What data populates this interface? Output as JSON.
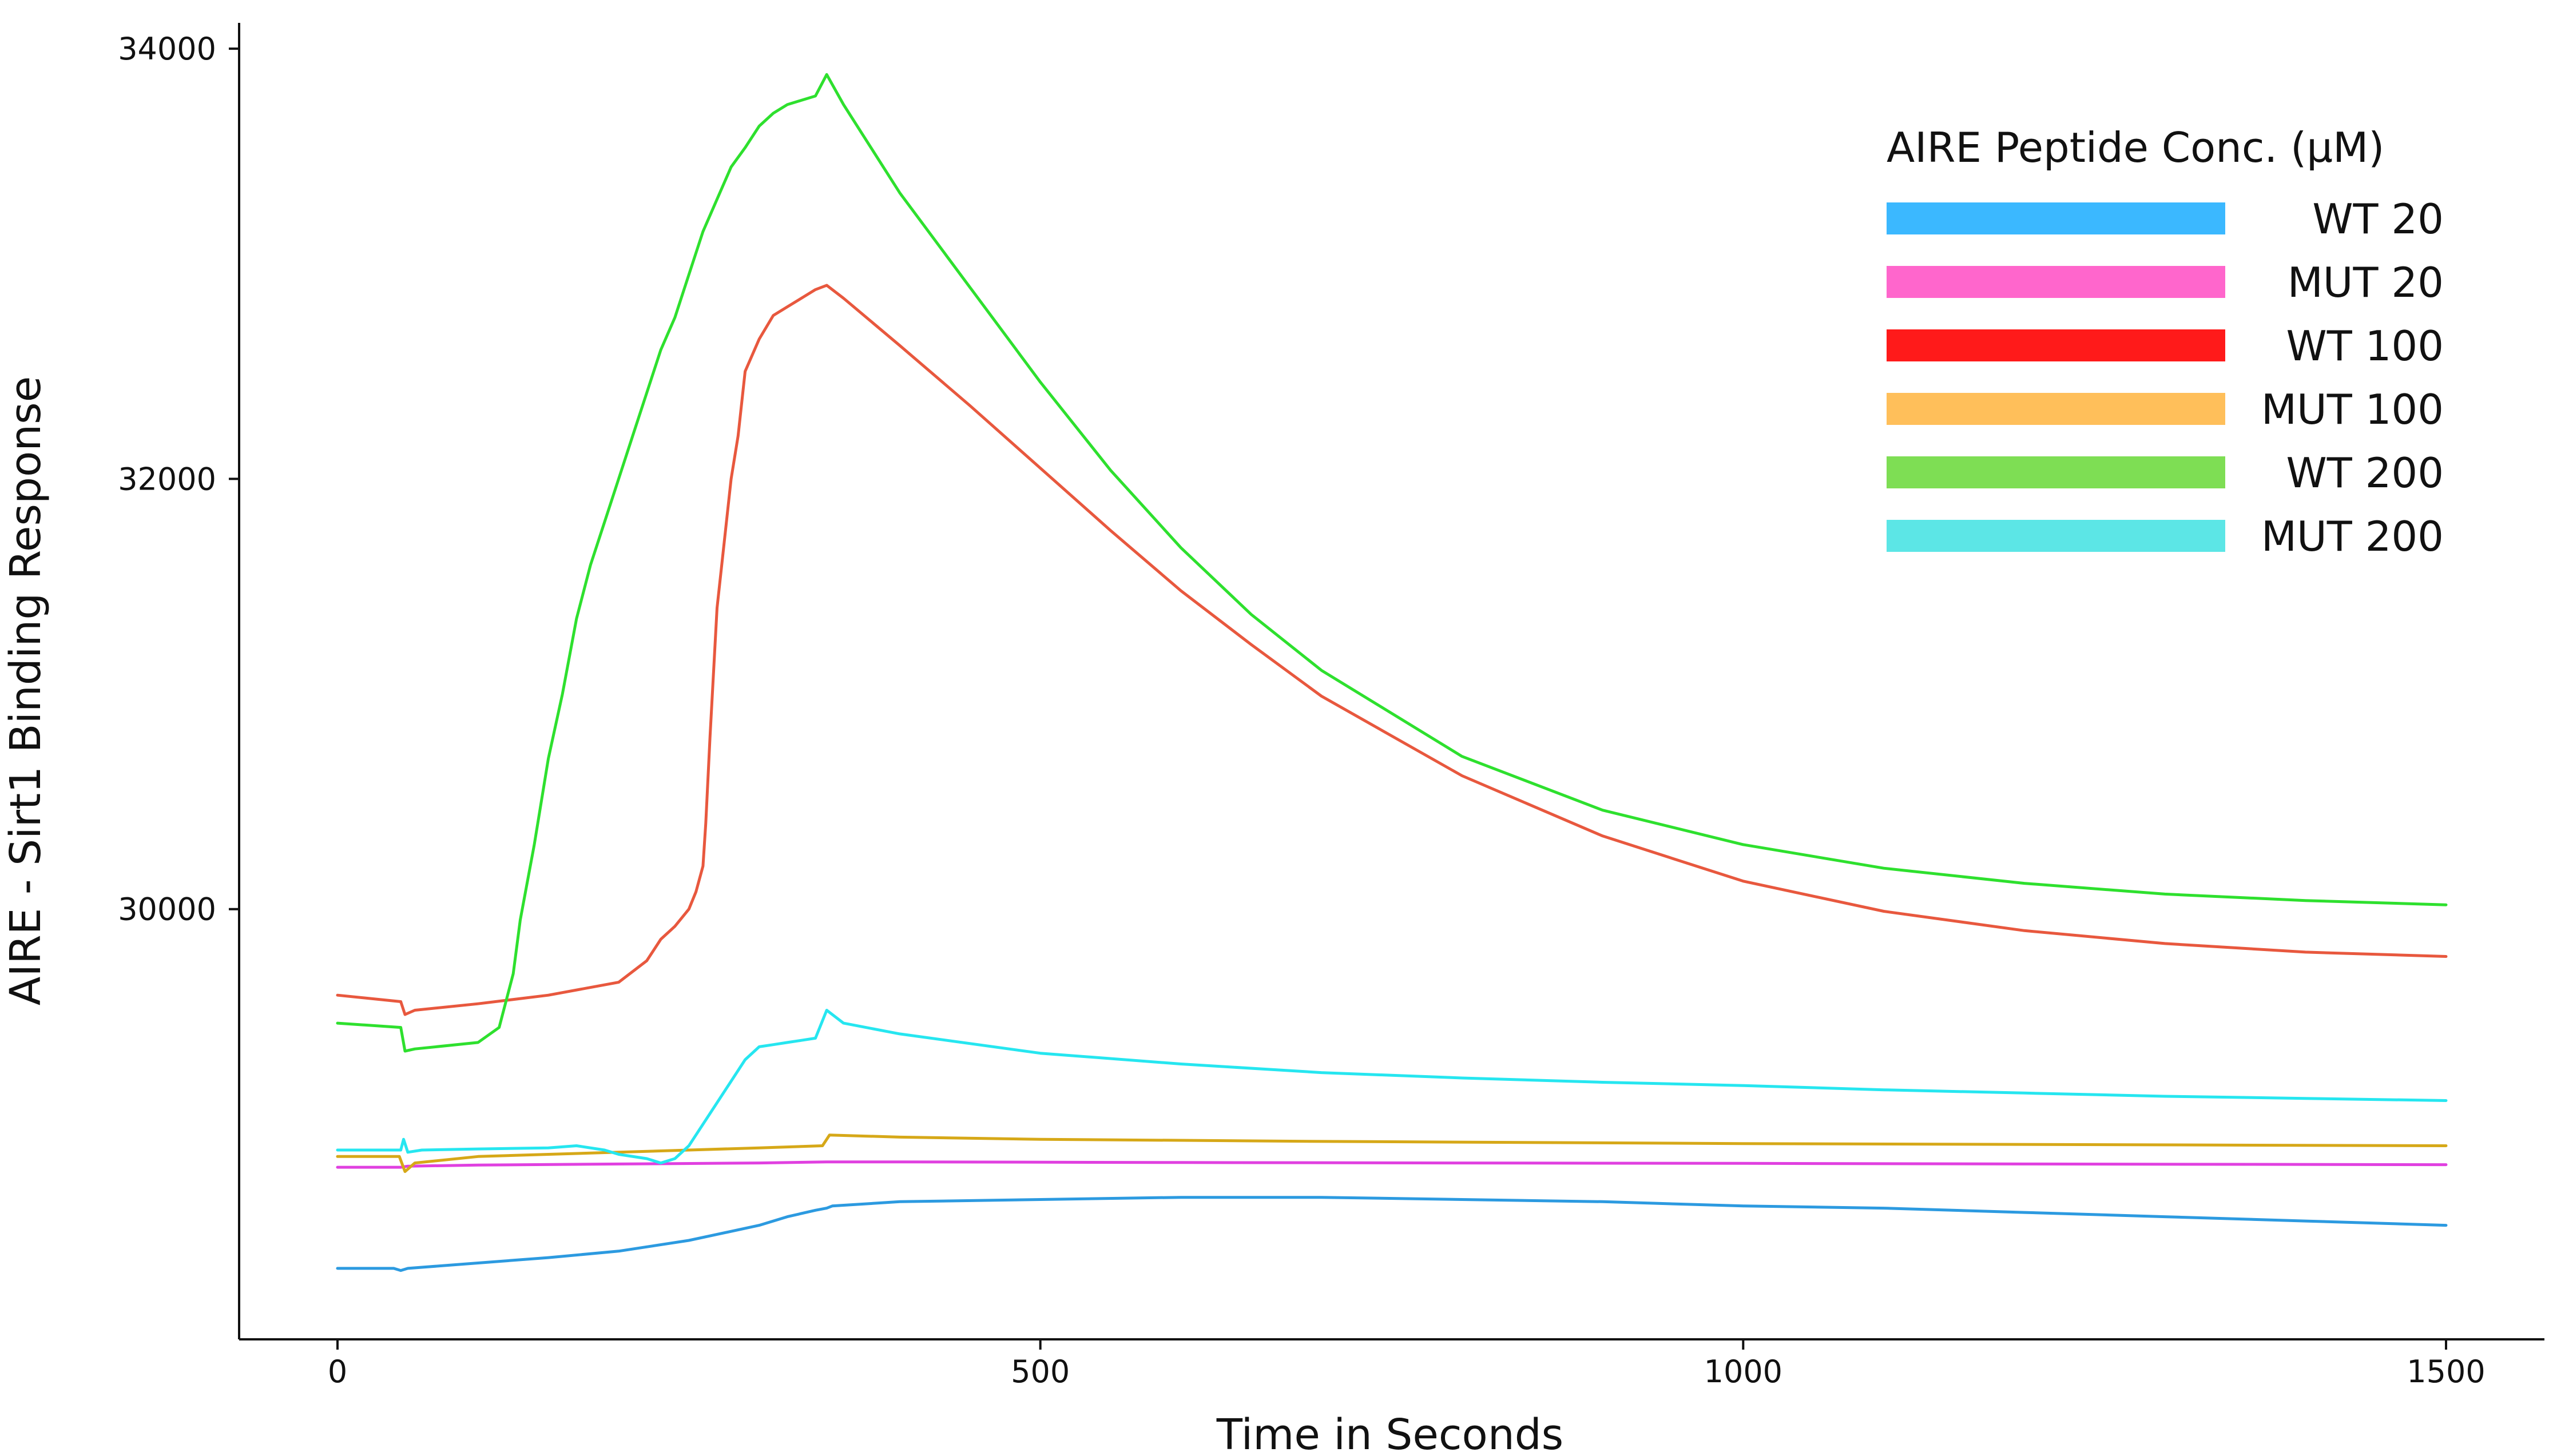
{
  "chart_data": {
    "type": "line",
    "title": "",
    "xlabel": "Time in Seconds",
    "ylabel": "AIRE - Sirt1 Binding Response",
    "xlim": [
      -70,
      1570
    ],
    "ylim": [
      28000,
      34120
    ],
    "xticks": [
      0,
      500,
      1000,
      1500
    ],
    "xtick_labels": [
      "0",
      "500",
      "1000",
      "1500"
    ],
    "yticks": [
      30000,
      32000,
      34000
    ],
    "ytick_labels": [
      "30000",
      "32000",
      "34000"
    ],
    "grid": false,
    "legend": {
      "title": "AIRE Peptide Conc. (µM)",
      "placement": "top-right",
      "entries": [
        {
          "label": "WT 20",
          "color": "#3bb8ff"
        },
        {
          "label": "MUT 20",
          "color": "#ff66cc"
        },
        {
          "label": "WT 100",
          "color": "#ff1a1a"
        },
        {
          "label": "MUT 100",
          "color": "#ffbf5a"
        },
        {
          "label": "WT 200",
          "color": "#7ede54"
        },
        {
          "label": "MUT 200",
          "color": "#5ce6e6"
        }
      ]
    },
    "series": [
      {
        "name": "WT 20",
        "color": "#2c9ae0",
        "x": [
          0,
          40,
          45,
          50,
          100,
          150,
          200,
          250,
          300,
          320,
          340,
          348,
          352,
          400,
          500,
          600,
          700,
          800,
          900,
          1000,
          1100,
          1200,
          1300,
          1400,
          1500
        ],
        "y": [
          28330,
          28330,
          28320,
          28330,
          28355,
          28380,
          28410,
          28460,
          28530,
          28570,
          28600,
          28610,
          28620,
          28640,
          28650,
          28660,
          28660,
          28650,
          28640,
          28620,
          28610,
          28590,
          28570,
          28550,
          28530
        ]
      },
      {
        "name": "MUT 20",
        "color": "#e040e0",
        "x": [
          0,
          45,
          50,
          100,
          200,
          300,
          348,
          352,
          400,
          600,
          800,
          1000,
          1200,
          1500
        ],
        "y": [
          28800,
          28800,
          28805,
          28810,
          28815,
          28820,
          28825,
          28825,
          28825,
          28822,
          28820,
          28818,
          28815,
          28812
        ]
      },
      {
        "name": "WT 100",
        "color": "#e8583e",
        "x": [
          0,
          45,
          48,
          55,
          100,
          150,
          200,
          220,
          230,
          240,
          250,
          255,
          260,
          262,
          265,
          270,
          275,
          280,
          285,
          290,
          300,
          310,
          320,
          330,
          340,
          348,
          360,
          400,
          450,
          500,
          550,
          600,
          650,
          700,
          800,
          900,
          1000,
          1100,
          1200,
          1300,
          1400,
          1500
        ],
        "y": [
          29600,
          29570,
          29510,
          29530,
          29560,
          29600,
          29660,
          29760,
          29860,
          29920,
          30000,
          30080,
          30200,
          30400,
          30800,
          31400,
          31700,
          32000,
          32200,
          32500,
          32650,
          32760,
          32800,
          32840,
          32880,
          32900,
          32840,
          32620,
          32340,
          32050,
          31760,
          31480,
          31230,
          30990,
          30620,
          30340,
          30130,
          29990,
          29900,
          29840,
          29800,
          29780
        ]
      },
      {
        "name": "MUT 100",
        "color": "#d6a818",
        "x": [
          0,
          44,
          48,
          55,
          100,
          150,
          200,
          250,
          300,
          345,
          350,
          400,
          500,
          700,
          1000,
          1500
        ],
        "y": [
          28850,
          28850,
          28780,
          28820,
          28850,
          28860,
          28870,
          28880,
          28890,
          28900,
          28950,
          28940,
          28930,
          28920,
          28910,
          28900
        ]
      },
      {
        "name": "WT 200",
        "color": "#2ee02e",
        "x": [
          0,
          45,
          48,
          55,
          100,
          115,
          125,
          130,
          140,
          150,
          160,
          170,
          180,
          190,
          200,
          210,
          220,
          230,
          240,
          250,
          260,
          270,
          280,
          290,
          300,
          310,
          320,
          330,
          340,
          348,
          360,
          400,
          450,
          500,
          550,
          600,
          650,
          700,
          800,
          900,
          1000,
          1100,
          1200,
          1300,
          1400,
          1500
        ],
        "y": [
          29470,
          29450,
          29340,
          29350,
          29380,
          29450,
          29700,
          29950,
          30300,
          30700,
          31000,
          31350,
          31600,
          31800,
          32000,
          32200,
          32400,
          32600,
          32750,
          32950,
          33150,
          33300,
          33450,
          33540,
          33640,
          33700,
          33740,
          33760,
          33780,
          33880,
          33740,
          33330,
          32890,
          32450,
          32040,
          31680,
          31370,
          31110,
          30710,
          30460,
          30300,
          30190,
          30120,
          30070,
          30040,
          30020
        ]
      },
      {
        "name": "MUT 200",
        "color": "#26e6f0",
        "x": [
          0,
          45,
          47,
          50,
          60,
          100,
          150,
          170,
          190,
          200,
          220,
          230,
          240,
          250,
          260,
          270,
          280,
          290,
          300,
          310,
          320,
          330,
          340,
          348,
          360,
          400,
          500,
          600,
          700,
          800,
          900,
          1000,
          1100,
          1200,
          1300,
          1400,
          1500
        ],
        "y": [
          28880,
          28880,
          28930,
          28870,
          28880,
          28885,
          28890,
          28900,
          28880,
          28860,
          28840,
          28820,
          28840,
          28900,
          29000,
          29100,
          29200,
          29300,
          29360,
          29370,
          29380,
          29390,
          29400,
          29530,
          29470,
          29420,
          29330,
          29280,
          29240,
          29215,
          29195,
          29180,
          29160,
          29145,
          29130,
          29120,
          29110
        ]
      }
    ]
  }
}
